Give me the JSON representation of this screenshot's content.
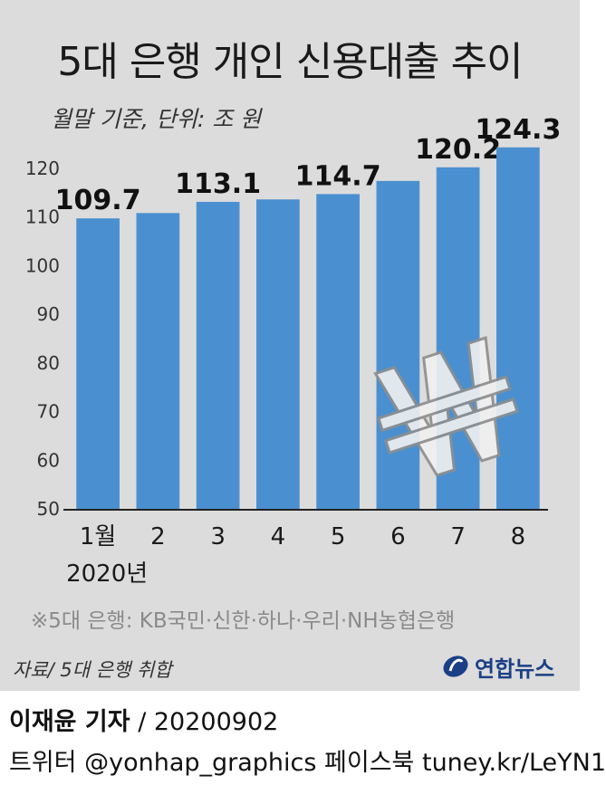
{
  "chart_data": {
    "type": "bar",
    "title": "5대 은행 개인 신용대출 추이",
    "subtitle": "월말 기준, 단위: 조 원",
    "categories": [
      "1월",
      "2",
      "3",
      "4",
      "5",
      "6",
      "7",
      "8"
    ],
    "x_caption": "2020년",
    "values": [
      109.7,
      110.8,
      113.1,
      113.6,
      114.7,
      117.4,
      120.2,
      124.3
    ],
    "data_labels": [
      "109.7",
      "",
      "113.1",
      "",
      "114.7",
      "",
      "120.2",
      "124.3"
    ],
    "ylim": [
      50,
      125
    ],
    "yticks": [
      50,
      60,
      70,
      80,
      90,
      100,
      110,
      120
    ],
    "colors": {
      "bar": "#4a90d0",
      "bar_dark": "#3a78b6"
    },
    "watermark_icon": "won-sign-icon"
  },
  "note": "※5대 은행: KB국민·신한·하나·우리·NH농협은행",
  "source": "자료/ 5대 은행 취합",
  "logo": {
    "text": "연합뉴스",
    "icon": "yonhap-logo-icon"
  },
  "credit": {
    "reporter": "이재윤 기자",
    "date": "/ 20200902"
  },
  "social": "트위터 @yonhap_graphics  페이스북 tuney.kr/LeYN1"
}
